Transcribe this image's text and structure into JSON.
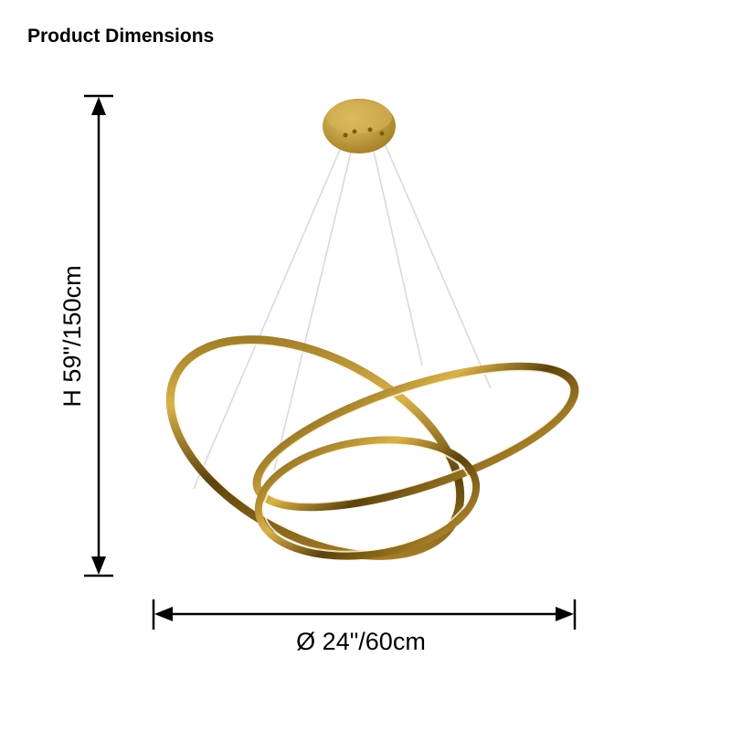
{
  "header": {
    "title": "Product Dimensions"
  },
  "dimensions": {
    "height": "H 59\"/150cm",
    "diameter": "Ø 24\"/60cm"
  }
}
